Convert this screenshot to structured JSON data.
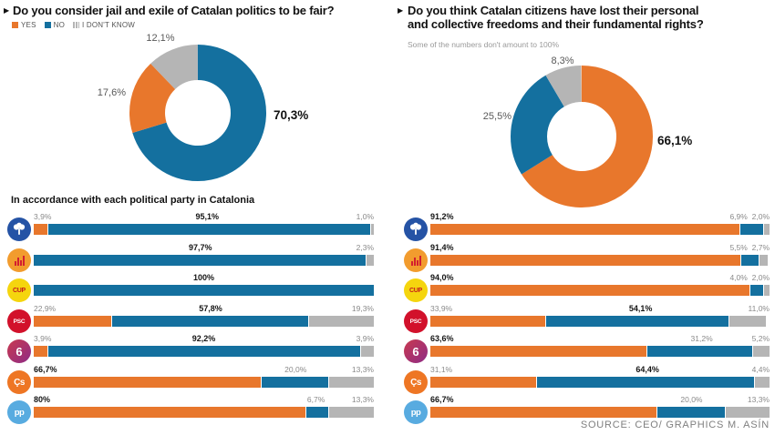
{
  "ui": {
    "left_title": "Do you consider jail and exile of Catalan politics to be fair?",
    "right_title_line1": "Do you think Catalan citizens have lost their personal",
    "right_title_line2": "and collective freedoms and their fundamental rights?",
    "right_note": "Some of the numbers don't amount to 100%",
    "left_subtitle": "In accordance with each political party in Catalonia",
    "source": "SOURCE: CEO/ GRAPHICS M. ASÍN",
    "legend": [
      {
        "label": "YES",
        "color": "#E8772C",
        "striped": false
      },
      {
        "label": "NO",
        "color": "#14709F",
        "striped": false
      },
      {
        "label": "I DON'T KNOW",
        "color": "#B5B5B5",
        "striped": true
      }
    ]
  },
  "colors": {
    "yes": "#E8772C",
    "no": "#14709F",
    "dk": "#B5B5B5"
  },
  "chart_data": [
    {
      "type": "pie",
      "subtype": "donut",
      "panel": "left",
      "title": "Do you consider jail and exile of Catalan politics to be fair?",
      "legend_position": "top-left",
      "slices": [
        {
          "key": "no",
          "name": "NO",
          "value": 70.3,
          "label": "70,3%"
        },
        {
          "key": "yes",
          "name": "YES",
          "value": 17.6,
          "label": "17,6%"
        },
        {
          "key": "dk",
          "name": "I DON'T KNOW",
          "value": 12.1,
          "label": "12,1%"
        }
      ]
    },
    {
      "type": "pie",
      "subtype": "donut",
      "panel": "right",
      "title": "Do you think Catalan citizens have lost their personal and collective freedoms and their fundamental rights?",
      "slices": [
        {
          "key": "yes",
          "name": "YES",
          "value": 66.1,
          "label": "66,1%"
        },
        {
          "key": "no",
          "name": "NO",
          "value": 25.5,
          "label": "25,5%"
        },
        {
          "key": "dk",
          "name": "I DON'T KNOW",
          "value": 8.3,
          "label": "8,3%"
        }
      ]
    },
    {
      "type": "bar",
      "subtype": "stacked-horizontal",
      "panel": "left",
      "title": "In accordance with each political party in Catalonia",
      "series_keys": [
        "yes",
        "no",
        "dk"
      ],
      "xlim": [
        0,
        100
      ],
      "rows": [
        {
          "party": "jxcat",
          "party_name": "JxCat",
          "yes": 3.9,
          "no": 95.1,
          "dk": 1.0,
          "labels": [
            {
              "text": "3,9%",
              "pos": 0,
              "anchor": "start",
              "bold": false
            },
            {
              "text": "95,1%",
              "pos": 51,
              "anchor": "middle",
              "bold": true
            },
            {
              "text": "1,0%",
              "pos": 100,
              "anchor": "end",
              "bold": false
            }
          ]
        },
        {
          "party": "erc",
          "party_name": "ERC",
          "yes": 0,
          "no": 97.7,
          "dk": 2.3,
          "labels": [
            {
              "text": "97,7%",
              "pos": 49,
              "anchor": "middle",
              "bold": true
            },
            {
              "text": "2,3%",
              "pos": 100,
              "anchor": "end",
              "bold": false
            }
          ]
        },
        {
          "party": "cup",
          "party_name": "CUP",
          "yes": 0,
          "no": 100,
          "dk": 0,
          "labels": [
            {
              "text": "100%",
              "pos": 50,
              "anchor": "middle",
              "bold": true
            }
          ]
        },
        {
          "party": "psc",
          "party_name": "PSC",
          "yes": 22.9,
          "no": 57.8,
          "dk": 19.3,
          "labels": [
            {
              "text": "22,9%",
              "pos": 0,
              "anchor": "start",
              "bold": false
            },
            {
              "text": "57,8%",
              "pos": 52,
              "anchor": "middle",
              "bold": true
            },
            {
              "text": "19,3%",
              "pos": 100,
              "anchor": "end",
              "bold": false
            }
          ]
        },
        {
          "party": "comu",
          "party_name": "CatComú",
          "yes": 3.9,
          "no": 92.2,
          "dk": 3.9,
          "labels": [
            {
              "text": "3,9%",
              "pos": 0,
              "anchor": "start",
              "bold": false
            },
            {
              "text": "92,2%",
              "pos": 50,
              "anchor": "middle",
              "bold": true
            },
            {
              "text": "3,9%",
              "pos": 100,
              "anchor": "end",
              "bold": false
            }
          ]
        },
        {
          "party": "cs",
          "party_name": "Cs",
          "yes": 66.7,
          "no": 20.0,
          "dk": 13.3,
          "labels": [
            {
              "text": "66,7%",
              "pos": 0,
              "anchor": "start",
              "bold": true
            },
            {
              "text": "20,0%",
              "pos": 77,
              "anchor": "middle",
              "bold": false
            },
            {
              "text": "13,3%",
              "pos": 100,
              "anchor": "end",
              "bold": false
            }
          ]
        },
        {
          "party": "pp",
          "party_name": "PP",
          "yes": 80,
          "no": 6.7,
          "dk": 13.3,
          "labels": [
            {
              "text": "80%",
              "pos": 0,
              "anchor": "start",
              "bold": true
            },
            {
              "text": "6,7%",
              "pos": 83,
              "anchor": "middle",
              "bold": false
            },
            {
              "text": "13,3%",
              "pos": 100,
              "anchor": "end",
              "bold": false
            }
          ]
        }
      ]
    },
    {
      "type": "bar",
      "subtype": "stacked-horizontal",
      "panel": "right",
      "title": "",
      "series_keys": [
        "yes",
        "no",
        "dk"
      ],
      "xlim": [
        0,
        100
      ],
      "rows": [
        {
          "party": "jxcat",
          "party_name": "JxCat",
          "yes": 91.2,
          "no": 6.9,
          "dk": 2.0,
          "labels": [
            {
              "text": "91,2%",
              "pos": 0,
              "anchor": "start",
              "bold": true
            },
            {
              "text": "6,9%",
              "pos": 93.5,
              "anchor": "end",
              "bold": false
            },
            {
              "text": "2,0%",
              "pos": 100,
              "anchor": "end",
              "bold": false
            }
          ]
        },
        {
          "party": "erc",
          "party_name": "ERC",
          "yes": 91.4,
          "no": 5.5,
          "dk": 2.7,
          "labels": [
            {
              "text": "91,4%",
              "pos": 0,
              "anchor": "start",
              "bold": true
            },
            {
              "text": "5,5%",
              "pos": 93.5,
              "anchor": "end",
              "bold": false
            },
            {
              "text": "2,7%",
              "pos": 100,
              "anchor": "end",
              "bold": false
            }
          ]
        },
        {
          "party": "cup",
          "party_name": "CUP",
          "yes": 94.0,
          "no": 4.0,
          "dk": 2.0,
          "labels": [
            {
              "text": "94,0%",
              "pos": 0,
              "anchor": "start",
              "bold": true
            },
            {
              "text": "4,0%",
              "pos": 93.5,
              "anchor": "end",
              "bold": false
            },
            {
              "text": "2,0%",
              "pos": 100,
              "anchor": "end",
              "bold": false
            }
          ]
        },
        {
          "party": "psc",
          "party_name": "PSC",
          "yes": 33.9,
          "no": 54.1,
          "dk": 11.0,
          "labels": [
            {
              "text": "33,9%",
              "pos": 0,
              "anchor": "start",
              "bold": false
            },
            {
              "text": "54,1%",
              "pos": 62,
              "anchor": "middle",
              "bold": true
            },
            {
              "text": "11,0%",
              "pos": 100,
              "anchor": "end",
              "bold": false
            }
          ]
        },
        {
          "party": "comu",
          "party_name": "CatComú",
          "yes": 63.6,
          "no": 31.2,
          "dk": 5.2,
          "labels": [
            {
              "text": "63,6%",
              "pos": 0,
              "anchor": "start",
              "bold": true
            },
            {
              "text": "31,2%",
              "pos": 80,
              "anchor": "middle",
              "bold": false
            },
            {
              "text": "5,2%",
              "pos": 100,
              "anchor": "end",
              "bold": false
            }
          ]
        },
        {
          "party": "cs",
          "party_name": "Cs",
          "yes": 31.1,
          "no": 64.4,
          "dk": 4.4,
          "labels": [
            {
              "text": "31,1%",
              "pos": 0,
              "anchor": "start",
              "bold": false
            },
            {
              "text": "64,4%",
              "pos": 64,
              "anchor": "middle",
              "bold": true
            },
            {
              "text": "4,4%",
              "pos": 100,
              "anchor": "end",
              "bold": false
            }
          ]
        },
        {
          "party": "pp",
          "party_name": "PP",
          "yes": 66.7,
          "no": 20.0,
          "dk": 13.3,
          "labels": [
            {
              "text": "66,7%",
              "pos": 0,
              "anchor": "start",
              "bold": true
            },
            {
              "text": "20,0%",
              "pos": 77,
              "anchor": "middle",
              "bold": false
            },
            {
              "text": "13,3%",
              "pos": 100,
              "anchor": "end",
              "bold": false
            }
          ]
        }
      ]
    }
  ],
  "party_icon_text": {
    "cup": "CUP",
    "psc": "PSC",
    "comu": "6",
    "cs": "Çs",
    "pp": "pp"
  }
}
